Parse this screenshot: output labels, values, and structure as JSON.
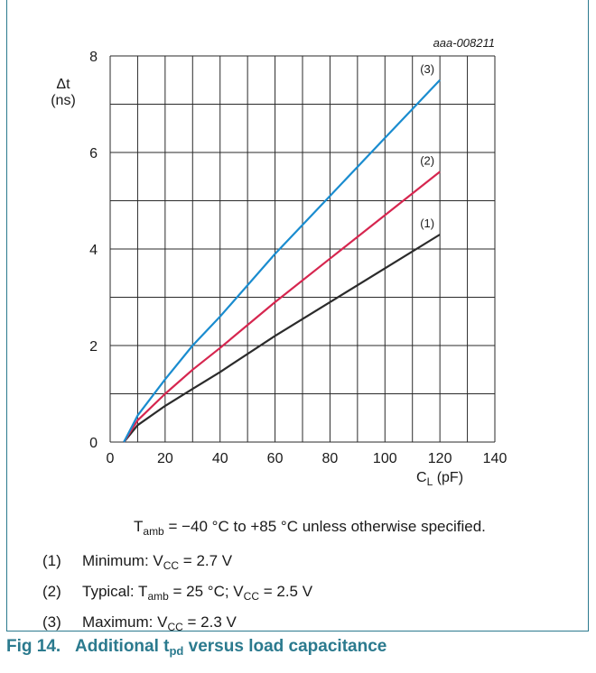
{
  "chart_data": {
    "type": "line",
    "figure_id": "aaa-008211",
    "ylabel_symbol": "Δt",
    "ylabel_unit": "(ns)",
    "xlabel_main": "C",
    "xlabel_sub": "L",
    "xlabel_unit": " (pF)",
    "xlim": [
      0,
      140
    ],
    "ylim": [
      0,
      8
    ],
    "x_ticks": [
      0,
      20,
      40,
      60,
      80,
      100,
      120,
      140
    ],
    "y_ticks": [
      0,
      2,
      4,
      6,
      8
    ],
    "grid": true,
    "series": [
      {
        "label": "(1)",
        "color": "#2b2b2b",
        "points": [
          [
            5,
            0
          ],
          [
            10,
            0.35
          ],
          [
            20,
            0.75
          ],
          [
            30,
            1.1
          ],
          [
            40,
            1.45
          ],
          [
            60,
            2.2
          ],
          [
            80,
            2.9
          ],
          [
            100,
            3.6
          ],
          [
            120,
            4.3
          ]
        ]
      },
      {
        "label": "(2)",
        "color": "#d6264f",
        "points": [
          [
            5,
            0
          ],
          [
            10,
            0.45
          ],
          [
            20,
            1.0
          ],
          [
            30,
            1.5
          ],
          [
            40,
            1.95
          ],
          [
            60,
            2.9
          ],
          [
            80,
            3.8
          ],
          [
            100,
            4.7
          ],
          [
            120,
            5.6
          ]
        ]
      },
      {
        "label": "(3)",
        "color": "#1a8ccf",
        "points": [
          [
            5,
            0
          ],
          [
            10,
            0.55
          ],
          [
            20,
            1.3
          ],
          [
            30,
            2.0
          ],
          [
            40,
            2.6
          ],
          [
            60,
            3.9
          ],
          [
            80,
            5.1
          ],
          [
            100,
            6.3
          ],
          [
            120,
            7.5
          ]
        ]
      }
    ]
  },
  "notes": {
    "condition": {
      "t": "T",
      "t_sub": "amb",
      "rest": " = −40 °C to +85 °C unless otherwise specified."
    },
    "items": [
      {
        "num": "(1)",
        "a": "Minimum: V",
        "a_sub": "CC",
        "b": " = 2.7 V",
        "b_sub": "",
        "c": ""
      },
      {
        "num": "(2)",
        "a": "Typical: T",
        "a_sub": "amb",
        "b": " = 25 °C; V",
        "b_sub": "CC",
        "c": " = 2.5 V"
      },
      {
        "num": "(3)",
        "a": "Maximum: V",
        "a_sub": "CC",
        "b": " = 2.3 V",
        "b_sub": "",
        "c": ""
      }
    ]
  },
  "caption": {
    "fig": "Fig 14.",
    "pre": "Additional t",
    "sub": "pd",
    "post": " versus load capacitance"
  }
}
